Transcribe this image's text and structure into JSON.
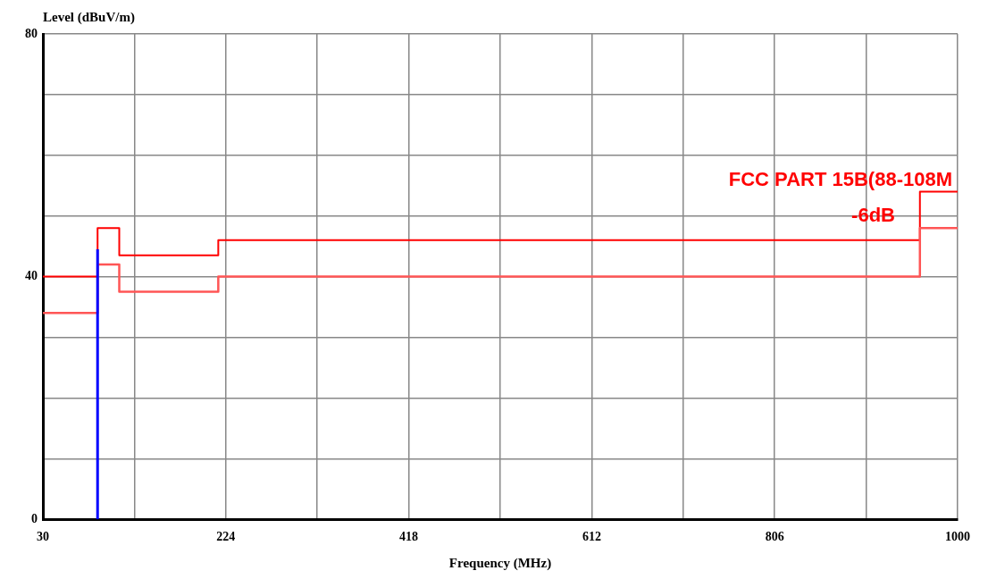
{
  "chart_data": {
    "type": "step",
    "ylabel": "Level (dBuV/m)",
    "xlabel": "Frequency (MHz)",
    "annotations": [
      "FCC PART 15B(88-108M",
      "-6dB"
    ],
    "xlim": [
      30,
      1000
    ],
    "ylim": [
      0,
      80
    ],
    "xticks": [
      30,
      {
        "value": 127,
        "label": null
      },
      224,
      {
        "value": 321,
        "label": null
      },
      418,
      {
        "value": 515,
        "label": null
      },
      612,
      {
        "value": 709,
        "label": null
      },
      806,
      {
        "value": 903,
        "label": null
      },
      1000
    ],
    "yticks": [
      0,
      {
        "value": 10,
        "label": null
      },
      {
        "value": 20,
        "label": null
      },
      {
        "value": 30,
        "label": null
      },
      40,
      {
        "value": 50,
        "label": null
      },
      {
        "value": 60,
        "label": null
      },
      {
        "value": 70,
        "label": null
      },
      80
    ],
    "grid": true,
    "series": [
      {
        "color": "#ff0000",
        "x": [
          30,
          88,
          111,
          216,
          960,
          1000
        ],
        "values": [
          40,
          48,
          43.5,
          46,
          54,
          54
        ]
      },
      {
        "color": "#ff5555",
        "x": [
          30,
          88,
          111,
          216,
          960,
          1000
        ],
        "values": [
          34,
          42,
          37.5,
          40,
          48,
          48
        ]
      },
      {
        "type": "line",
        "color": "#0000ff",
        "x": [
          88,
          88
        ],
        "values": [
          0,
          44.5
        ]
      }
    ]
  }
}
